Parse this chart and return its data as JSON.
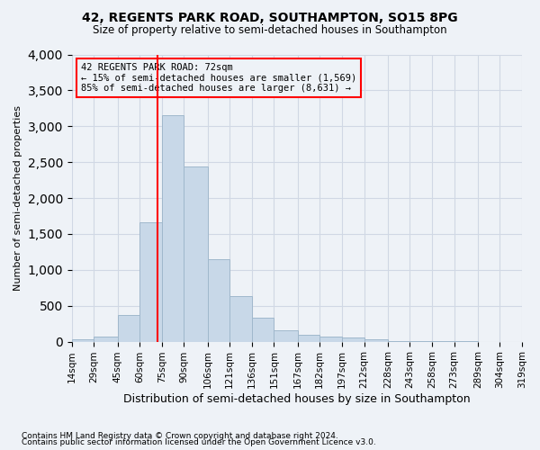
{
  "title": "42, REGENTS PARK ROAD, SOUTHAMPTON, SO15 8PG",
  "subtitle": "Size of property relative to semi-detached houses in Southampton",
  "xlabel": "Distribution of semi-detached houses by size in Southampton",
  "ylabel": "Number of semi-detached properties",
  "footnote1": "Contains HM Land Registry data © Crown copyright and database right 2024.",
  "footnote2": "Contains public sector information licensed under the Open Government Licence v3.0.",
  "annotation_title": "42 REGENTS PARK ROAD: 72sqm",
  "annotation_line1": "← 15% of semi-detached houses are smaller (1,569)",
  "annotation_line2": "85% of semi-detached houses are larger (8,631) →",
  "property_size": 72,
  "bar_color": "#c8d8e8",
  "bar_edge_color": "#a0b8cc",
  "vline_color": "red",
  "annotation_box_color": "red",
  "background_color": "#eef2f7",
  "grid_color": "#d0d8e4",
  "bin_edges": [
    14,
    29,
    45,
    60,
    75,
    90,
    106,
    121,
    136,
    151,
    167,
    182,
    197,
    212,
    228,
    243,
    258,
    273,
    289,
    304,
    319
  ],
  "categories": [
    "14sqm",
    "29sqm",
    "45sqm",
    "60sqm",
    "75sqm",
    "90sqm",
    "106sqm",
    "121sqm",
    "136sqm",
    "151sqm",
    "167sqm",
    "182sqm",
    "197sqm",
    "212sqm",
    "228sqm",
    "243sqm",
    "258sqm",
    "273sqm",
    "289sqm",
    "304sqm"
  ],
  "values": [
    30,
    70,
    370,
    1660,
    3160,
    2440,
    1145,
    630,
    330,
    155,
    95,
    70,
    55,
    30,
    10,
    5,
    3,
    2,
    1,
    1
  ],
  "ylim": [
    0,
    4000
  ],
  "yticks": [
    0,
    500,
    1000,
    1500,
    2000,
    2500,
    3000,
    3500,
    4000
  ]
}
